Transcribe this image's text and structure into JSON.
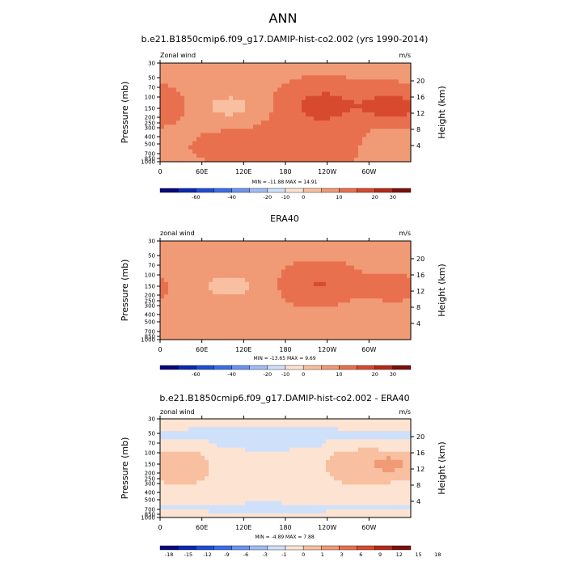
{
  "figure": {
    "title": "ANN"
  },
  "chart_data": [
    {
      "type": "heatmap",
      "title": "b.e21.B1850cmip6.f09_g17.DAMIP-hist-co2.002 (yrs 1990-2014)",
      "left_label": "Zonal wind",
      "right_label": "m/s",
      "ylabel": "Pressure (mb)",
      "ylabel_right": "Height (km)",
      "x_ticks": [
        "0",
        "60E",
        "120E",
        "180",
        "120W",
        "60W"
      ],
      "y_ticks": [
        "30",
        "50",
        "70",
        "100",
        "150",
        "200",
        "250",
        "300",
        "400",
        "500",
        "700",
        "850",
        "1000"
      ],
      "height_ticks": [
        "20",
        "16",
        "12",
        "8",
        "4"
      ],
      "stats_text": "MIN = -11.88  MAX =  14.91",
      "colorbar": {
        "labels": [
          "-60",
          "-40",
          "-20",
          "-10",
          "0",
          "10",
          "20",
          "30"
        ],
        "colors": [
          "#08087a",
          "#0a29b0",
          "#1c4ed6",
          "#3a6ee8",
          "#6d93ef",
          "#a0bcf4",
          "#cfe0fa",
          "#fde3d2",
          "#f8c0a0",
          "#f19a76",
          "#e8704e",
          "#d84a2e",
          "#b32a18",
          "#7a100c"
        ]
      },
      "field": {
        "x_range": [
          0,
          360
        ],
        "background": 3,
        "blobs": [
          {
            "lon": 100,
            "lat_p": 140,
            "w": 40,
            "h": 60,
            "val": -8
          },
          {
            "lon": 235,
            "lat_p": 130,
            "w": 55,
            "h": 80,
            "val": 10
          },
          {
            "lon": 335,
            "lat_p": 140,
            "w": 45,
            "h": 75,
            "val": 11
          },
          {
            "lon": 105,
            "lat_p": 600,
            "w": 60,
            "h": 300,
            "val": 4
          },
          {
            "lon": 220,
            "lat_p": 500,
            "w": 80,
            "h": 350,
            "val": 5
          },
          {
            "lon": 330,
            "lat_p": 600,
            "w": 40,
            "h": 350,
            "val": -4
          }
        ]
      }
    },
    {
      "type": "heatmap",
      "title": "ERA40",
      "left_label": "zonal wind",
      "right_label": "m/s",
      "ylabel": "Pressure (mb)",
      "ylabel_right": "Height (km)",
      "x_ticks": [
        "0",
        "60E",
        "120E",
        "180",
        "120W",
        "60W"
      ],
      "y_ticks": [
        "30",
        "50",
        "70",
        "100",
        "150",
        "200",
        "250",
        "300",
        "400",
        "500",
        "700",
        "850",
        "1000"
      ],
      "height_ticks": [
        "20",
        "16",
        "12",
        "8",
        "4"
      ],
      "stats_text": "MIN = -13.65  MAX =  9.69",
      "colorbar": {
        "labels": [
          "-60",
          "-40",
          "-20",
          "-10",
          "0",
          "10",
          "20",
          "30"
        ],
        "colors": [
          "#08087a",
          "#0a29b0",
          "#1c4ed6",
          "#3a6ee8",
          "#6d93ef",
          "#a0bcf4",
          "#cfe0fa",
          "#fde3d2",
          "#f8c0a0",
          "#f19a76",
          "#e8704e",
          "#d84a2e",
          "#b32a18",
          "#7a100c"
        ]
      },
      "field": {
        "x_range": [
          0,
          360
        ],
        "background": 3,
        "blobs": [
          {
            "lon": 100,
            "lat_p": 150,
            "w": 45,
            "h": 70,
            "val": -8
          },
          {
            "lon": 230,
            "lat_p": 140,
            "w": 50,
            "h": 80,
            "val": 8
          },
          {
            "lon": 330,
            "lat_p": 160,
            "w": 35,
            "h": 60,
            "val": 7
          },
          {
            "lon": 200,
            "lat_p": 35,
            "w": 400,
            "h": 20,
            "val": -4
          },
          {
            "lon": 300,
            "lat_p": 600,
            "w": 40,
            "h": 350,
            "val": -4
          }
        ]
      }
    },
    {
      "type": "heatmap",
      "title": "b.e21.B1850cmip6.f09_g17.DAMIP-hist-co2.002 - ERA40",
      "left_label": "zonal wind",
      "right_label": "m/s",
      "ylabel": "Pressure (mb)",
      "ylabel_right": "Height (km)",
      "x_ticks": [
        "0",
        "60E",
        "120E",
        "180",
        "120W",
        "60W"
      ],
      "y_ticks": [
        "30",
        "50",
        "70",
        "100",
        "150",
        "200",
        "250",
        "300",
        "400",
        "500",
        "700",
        "850",
        "1000"
      ],
      "height_ticks": [
        "20",
        "16",
        "12",
        "8",
        "4"
      ],
      "stats_text": "MIN = -4.89  MAX =  7.88",
      "colorbar": {
        "labels": [
          "-18",
          "-15",
          "-12",
          "-9",
          "-6",
          "-3",
          "-1",
          "0",
          "1",
          "3",
          "6",
          "9",
          "12",
          "15",
          "18"
        ],
        "colors": [
          "#08087a",
          "#0a29b0",
          "#1c4ed6",
          "#3a6ee8",
          "#6d93ef",
          "#a0bcf4",
          "#cfe0fa",
          "#fde3d2",
          "#f8c0a0",
          "#f19a76",
          "#e8704e",
          "#d84a2e",
          "#b32a18",
          "#7a100c"
        ]
      },
      "field": {
        "x_range": [
          0,
          360
        ],
        "background": 0.5,
        "blobs": [
          {
            "lon": 40,
            "lat_p": 170,
            "w": 50,
            "h": 120,
            "val": 3
          },
          {
            "lon": 290,
            "lat_p": 160,
            "w": 70,
            "h": 120,
            "val": 3.5
          },
          {
            "lon": 330,
            "lat_p": 150,
            "w": 20,
            "h": 40,
            "val": 4
          },
          {
            "lon": 200,
            "lat_p": 55,
            "w": 400,
            "h": 15,
            "val": -2
          },
          {
            "lon": 180,
            "lat_p": 80,
            "w": 120,
            "h": 10,
            "val": -1.5
          },
          {
            "lon": 180,
            "lat_p": 700,
            "w": 400,
            "h": 120,
            "val": -1.2
          }
        ]
      }
    }
  ]
}
